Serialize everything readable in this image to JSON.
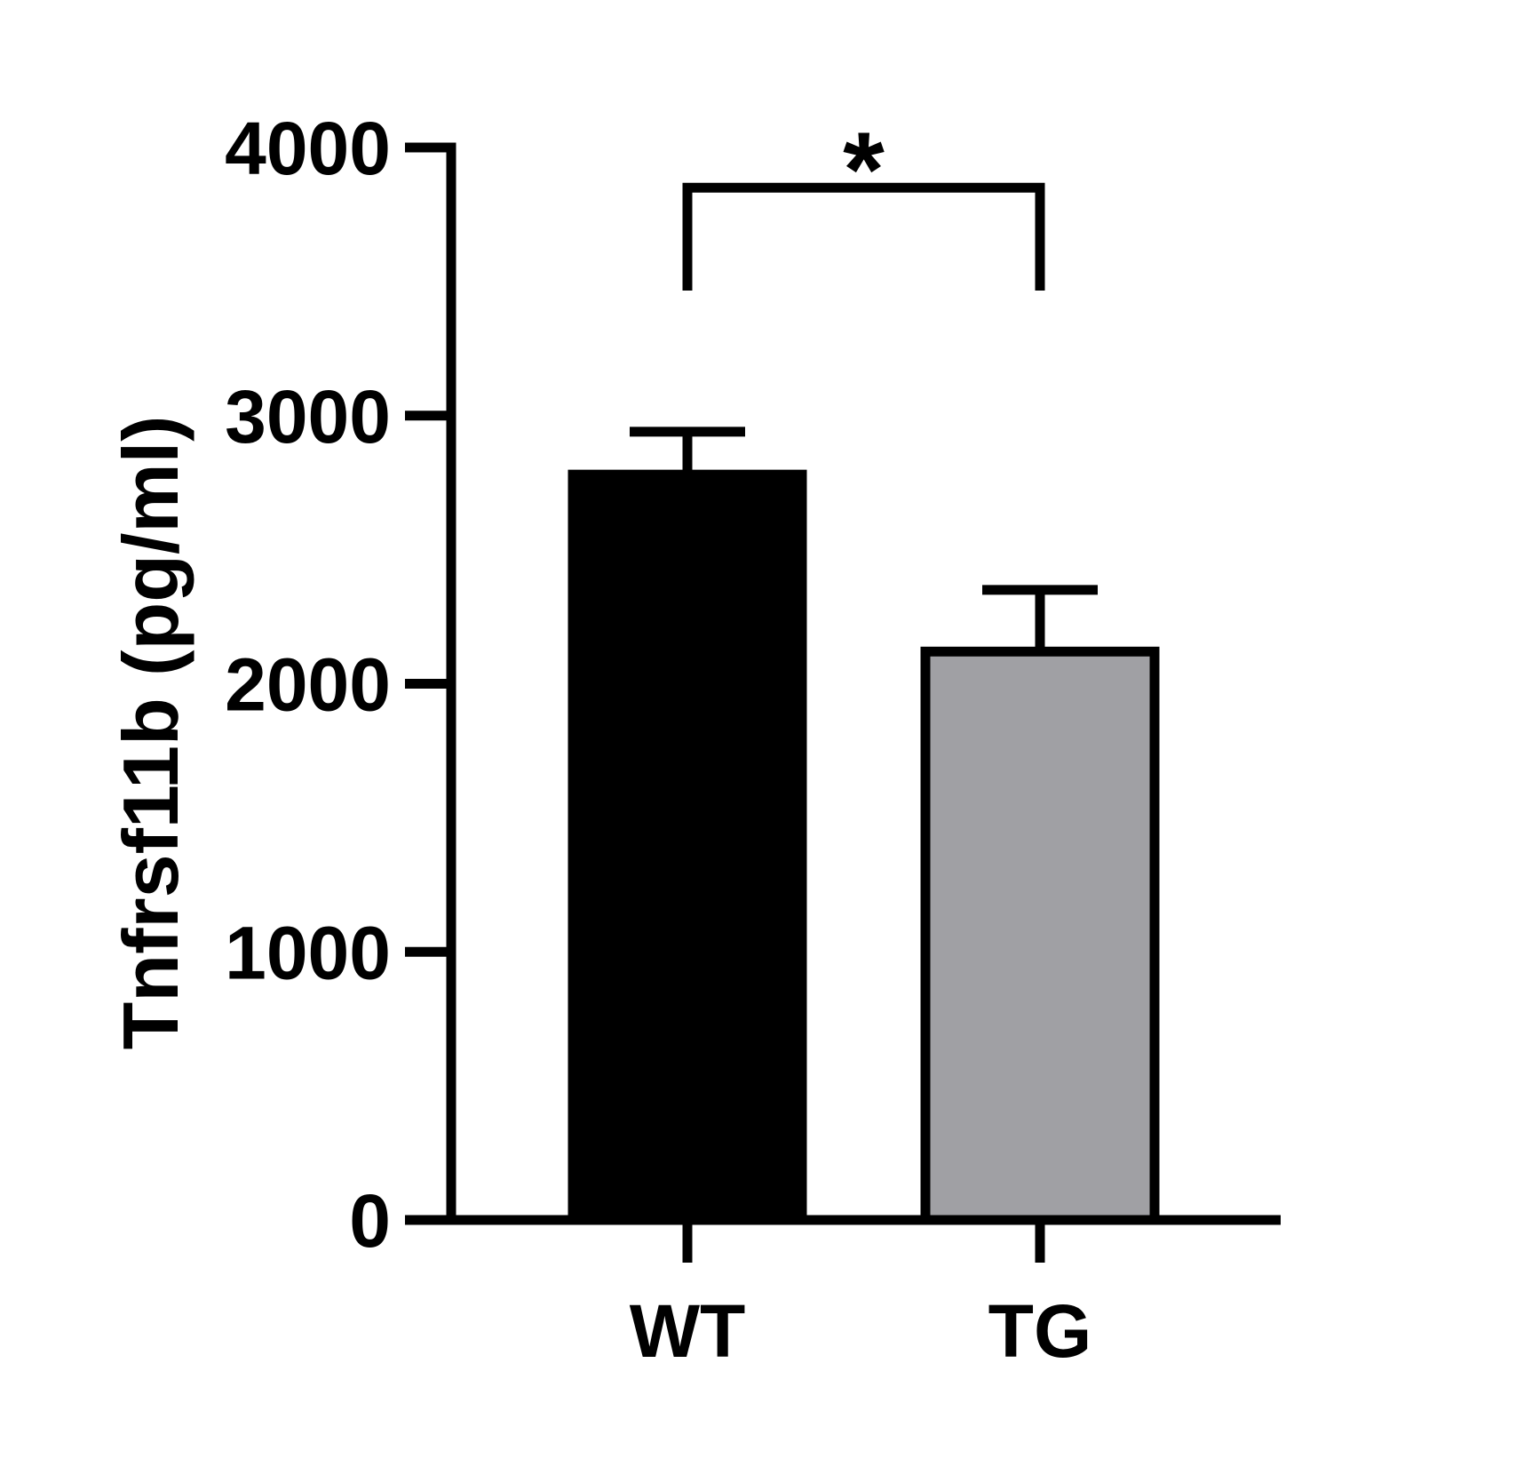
{
  "chart_data": {
    "type": "bar",
    "title": "",
    "xlabel": "",
    "ylabel": "Tnfrsf11b (pg/ml)",
    "ylim": [
      0,
      4000
    ],
    "yticks": [
      0,
      1000,
      2000,
      3000,
      4000
    ],
    "ytick_labels": [
      "0",
      "1000",
      "2000",
      "3000",
      "4000"
    ],
    "categories": [
      "WT",
      "TG"
    ],
    "values": [
      2780,
      2120
    ],
    "errors": [
      160,
      230
    ],
    "colors": [
      "#000000",
      "#a0a0a4"
    ],
    "grid": false,
    "legend": "none",
    "significance": {
      "between": [
        "WT",
        "TG"
      ],
      "label": "*",
      "level": 3850
    }
  }
}
